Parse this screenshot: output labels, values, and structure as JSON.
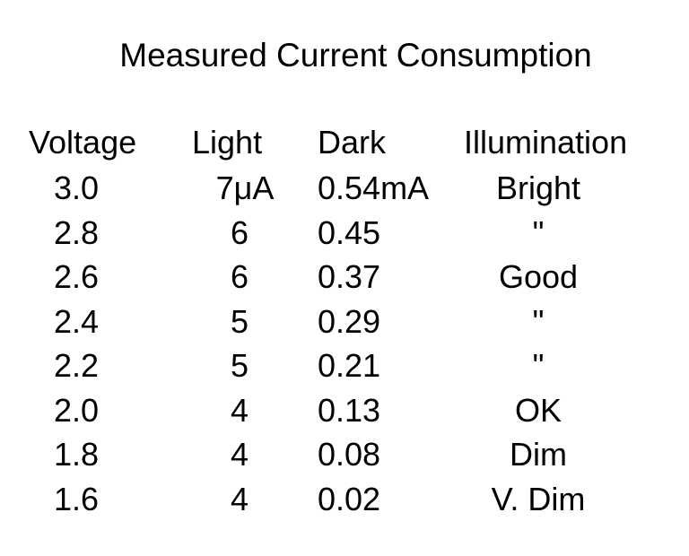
{
  "chart_data": {
    "type": "table",
    "title": "Measured Current Consumption",
    "columns": [
      "Voltage",
      "Light",
      "Dark",
      "Illumination"
    ],
    "rows": [
      [
        "3.0",
        "7μA",
        "0.54mA",
        "Bright"
      ],
      [
        "2.8",
        "6",
        "0.45",
        "\""
      ],
      [
        "2.6",
        "6",
        "0.37",
        "Good"
      ],
      [
        "2.4",
        "5",
        "0.29",
        "\""
      ],
      [
        "2.2",
        "5",
        "0.21",
        "\""
      ],
      [
        "2.0",
        "4",
        "0.13",
        "OK"
      ],
      [
        "1.8",
        "4",
        "0.08",
        "Dim"
      ],
      [
        "1.6",
        "4",
        "0.02",
        "V. Dim"
      ]
    ]
  }
}
